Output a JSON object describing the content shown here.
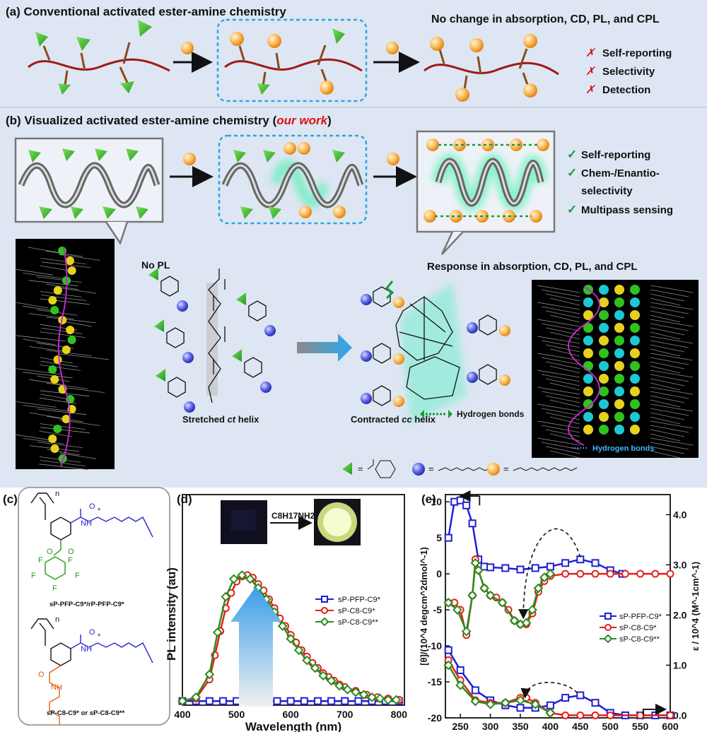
{
  "panel_a": {
    "label": "(a) Conventional activated ester-amine chemistry",
    "result_text": "No change in absorption, CD, PL, and CPL",
    "drawbacks": [
      "Self-reporting",
      "Selectivity",
      "Detection"
    ],
    "cross_mark": "✗"
  },
  "panel_b": {
    "label_prefix": "(b) Visualized activated ester-amine chemistry (",
    "label_emph": "our work",
    "label_suffix": ")",
    "benefits": [
      "Self-reporting",
      "Chem-/Enantio-",
      "selectivity",
      "Multipass sensing"
    ],
    "check_mark": "✓",
    "no_pl": "No PL",
    "response_text": "Response in absorption, CD, PL, and CPL",
    "stretched_prefix": "Stretched ",
    "stretched_italic": "ct",
    "stretched_suffix": " helix",
    "contracted_prefix": "Contracted ",
    "contracted_italic": "cc",
    "contracted_suffix": " helix",
    "hydrogen_bonds": "Hydrogen bonds",
    "md_hbonds": "Hydrogen bonds",
    "legend_eq": "="
  },
  "panel_c": {
    "label": "(c)",
    "n_sub": "n",
    "nh": "NH",
    "star": "*",
    "o": "O",
    "f": "F",
    "struct1_name": "sP-PFP-C9*/rP-PFP-C9*",
    "struct2_name": "sP-C8-C9* or sP-C8-C9**",
    "n2": "N",
    "h2": "H"
  },
  "panel_d": {
    "label": "(d)",
    "reagent": "C8H17NH2",
    "colors": {
      "pfp": "#1f1fd6",
      "c8": "#e3211c",
      "c8b": "#2e8b1f"
    }
  },
  "panel_e": {
    "label": "(e)",
    "colors": {
      "pfp": "#1f1fd6",
      "c8": "#e3211c",
      "c8b": "#2e8b1f"
    }
  },
  "chart_data": [
    {
      "type": "line",
      "xlabel": "Wavelength (nm)",
      "ylabel": "PL intensity (au)",
      "xlim": [
        400,
        810
      ],
      "xticks": [
        400,
        500,
        600,
        700,
        800
      ],
      "yticks_shown": false,
      "legend_position": "center-right",
      "series": [
        {
          "name": "sP-PFP-C9*",
          "marker": "square",
          "x": [
            400,
            425,
            450,
            475,
            500,
            525,
            550,
            575,
            600,
            625,
            650,
            675,
            700,
            725,
            750,
            775,
            800
          ],
          "y": [
            0.01,
            0.01,
            0.01,
            0.01,
            0.01,
            0.01,
            0.01,
            0.01,
            0.01,
            0.01,
            0.01,
            0.01,
            0.01,
            0.01,
            0.01,
            0.01,
            0.01
          ]
        },
        {
          "name": "sP-C8-C9*",
          "marker": "circle",
          "x": [
            400,
            425,
            450,
            460,
            470,
            480,
            490,
            500,
            510,
            520,
            530,
            540,
            550,
            560,
            570,
            580,
            590,
            600,
            610,
            620,
            630,
            640,
            650,
            660,
            670,
            680,
            690,
            700,
            720,
            740,
            760,
            780,
            800
          ],
          "y": [
            0.01,
            0.03,
            0.18,
            0.37,
            0.56,
            0.74,
            0.86,
            0.95,
            0.99,
            1.0,
            0.98,
            0.93,
            0.88,
            0.81,
            0.74,
            0.66,
            0.6,
            0.53,
            0.47,
            0.41,
            0.36,
            0.31,
            0.27,
            0.23,
            0.2,
            0.17,
            0.14,
            0.12,
            0.09,
            0.06,
            0.04,
            0.03,
            0.02
          ]
        },
        {
          "name": "sP-C8-C9**",
          "marker": "diamond",
          "x": [
            400,
            425,
            450,
            465,
            480,
            495,
            510,
            525,
            540,
            555,
            570,
            585,
            600,
            615,
            630,
            645,
            660,
            675,
            690,
            705,
            720,
            735,
            750,
            765,
            780,
            795
          ],
          "y": [
            0.01,
            0.04,
            0.22,
            0.55,
            0.83,
            0.97,
            1.0,
            0.97,
            0.9,
            0.81,
            0.71,
            0.6,
            0.5,
            0.41,
            0.33,
            0.27,
            0.21,
            0.17,
            0.13,
            0.1,
            0.08,
            0.06,
            0.04,
            0.03,
            0.02,
            0.02
          ]
        }
      ]
    },
    {
      "type": "line",
      "xlabel": "Wavelength (nm)",
      "ylabel_left": "[θ]/(10^4 degcm^2dmol^-1)",
      "ylabel_right": "ε / 10^4 (M^-1cm^-1)",
      "xlim": [
        225,
        600
      ],
      "xticks": [
        250,
        300,
        350,
        400,
        450,
        500,
        550,
        600
      ],
      "ylim_left": [
        -20,
        11
      ],
      "yticks_left": [
        10,
        5,
        0,
        -5,
        -10,
        -15,
        -20
      ],
      "ylim_right": [
        -0.05,
        4.4
      ],
      "yticks_right": [
        4.0,
        3.0,
        2.0,
        1.0,
        0.0
      ],
      "legend_position": "right",
      "cd_series": [
        {
          "name": "sP-PFP-C9*",
          "marker": "square",
          "x": [
            230,
            240,
            250,
            260,
            270,
            280,
            290,
            300,
            325,
            350,
            375,
            400,
            425,
            450,
            475,
            500,
            520
          ],
          "y": [
            5,
            10,
            10.2,
            9.5,
            7,
            2,
            1,
            0.9,
            0.8,
            0.6,
            0.8,
            1,
            1.5,
            2,
            1.5,
            0.5,
            0
          ]
        },
        {
          "name": "sP-C8-C9*",
          "marker": "circle",
          "x": [
            230,
            240,
            250,
            260,
            270,
            275,
            280,
            290,
            300,
            310,
            320,
            330,
            340,
            350,
            360,
            370,
            380,
            390,
            400,
            425,
            450,
            475,
            500,
            525,
            550,
            575,
            600
          ],
          "y": [
            -4,
            -4,
            -5,
            -8.5,
            -3,
            2,
            0.5,
            -2,
            -3,
            -3.3,
            -4,
            -5,
            -6.5,
            -7,
            -7,
            -5.5,
            -2.5,
            -1,
            -0.3,
            0,
            0,
            0,
            0,
            0,
            0,
            0,
            0
          ]
        },
        {
          "name": "sP-C8-C9**",
          "marker": "diamond",
          "x": [
            230,
            245,
            260,
            270,
            275,
            280,
            290,
            300,
            320,
            340,
            350,
            360,
            370,
            380,
            390,
            400
          ],
          "y": [
            -4,
            -5,
            -8,
            -3,
            1.5,
            0.5,
            -2,
            -3,
            -4,
            -6.5,
            -7,
            -6.8,
            -5,
            -2,
            -0.5,
            0
          ]
        }
      ],
      "abs_series": [
        {
          "name": "sP-PFP-C9*",
          "marker": "square",
          "x": [
            230,
            250,
            275,
            300,
            325,
            350,
            375,
            400,
            425,
            450,
            475,
            500,
            525,
            550,
            575,
            600
          ],
          "y": [
            1.3,
            0.9,
            0.5,
            0.3,
            0.2,
            0.15,
            0.15,
            0.2,
            0.35,
            0.4,
            0.25,
            0.05,
            0.0,
            0.0,
            0.0,
            0.0
          ]
        },
        {
          "name": "sP-C8-C9*",
          "marker": "circle",
          "x": [
            230,
            250,
            275,
            300,
            325,
            350,
            360,
            375,
            400,
            425,
            450,
            475,
            500,
            550,
            600
          ],
          "y": [
            1.1,
            0.7,
            0.3,
            0.25,
            0.25,
            0.35,
            0.35,
            0.25,
            0.05,
            0.0,
            0.0,
            0.0,
            0.0,
            0.0,
            0.0
          ]
        },
        {
          "name": "sP-C8-C9**",
          "marker": "diamond",
          "x": [
            230,
            250,
            275,
            300,
            325,
            350,
            375,
            400
          ],
          "y": [
            1.0,
            0.6,
            0.28,
            0.22,
            0.25,
            0.3,
            0.22,
            0.05
          ]
        }
      ]
    }
  ]
}
